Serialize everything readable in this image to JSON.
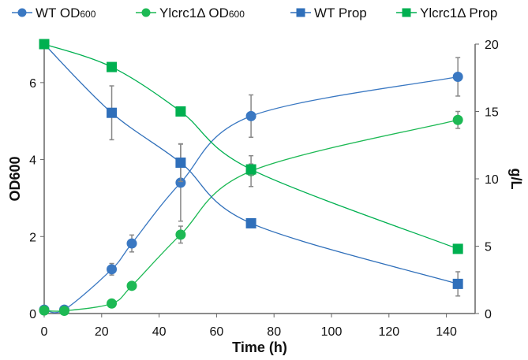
{
  "chart_data": {
    "type": "line",
    "title": "",
    "xlabel": "Time (h)",
    "ylabel": "OD600",
    "y2label": "g/L",
    "xlim": [
      0,
      150
    ],
    "ylim": [
      0,
      7
    ],
    "y2lim": [
      0,
      20
    ],
    "xticks": [
      0,
      20,
      40,
      60,
      80,
      100,
      120,
      140
    ],
    "yticks": [
      0,
      2,
      4,
      6
    ],
    "y2ticks": [
      0,
      5,
      10,
      15,
      20
    ],
    "grid": false,
    "legend_position": "top",
    "series": [
      {
        "name": "WT OD600",
        "legend_main": "WT OD",
        "legend_sub": "600",
        "axis": "left",
        "marker": "circle",
        "color": "#3a78c2",
        "x": [
          0,
          7,
          23.5,
          30.5,
          47.5,
          72,
          144
        ],
        "y": [
          0.1,
          0.1,
          1.15,
          1.82,
          3.4,
          5.13,
          6.15
        ],
        "err": [
          0,
          0,
          0.15,
          0.22,
          1.0,
          0.55,
          0.5
        ]
      },
      {
        "name": "Ylcrc1Δ OD600",
        "legend_main": "Ylcrc1Δ OD",
        "legend_sub": "600",
        "axis": "left",
        "marker": "circle",
        "color": "#1db954",
        "x": [
          0,
          7,
          23.5,
          30.5,
          47.5,
          72,
          144
        ],
        "y": [
          0.08,
          0.07,
          0.26,
          0.72,
          2.05,
          3.7,
          5.03
        ],
        "err": [
          0,
          0,
          0,
          0.1,
          0.22,
          0.4,
          0.22
        ]
      },
      {
        "name": "WT Prop",
        "legend_main": "WT Prop",
        "legend_sub": "",
        "axis": "right",
        "marker": "square",
        "color": "#2f6fba",
        "x": [
          0,
          23.5,
          47.5,
          72,
          144
        ],
        "y": [
          20,
          14.9,
          11.2,
          6.7,
          2.2
        ],
        "err": [
          0,
          2.0,
          1.4,
          0.3,
          0.9
        ]
      },
      {
        "name": "Ylcrc1Δ Prop",
        "legend_main": "Ylcrc1Δ Prop",
        "legend_sub": "",
        "axis": "right",
        "marker": "square",
        "color": "#00b050",
        "x": [
          0,
          23.5,
          47.5,
          72,
          144
        ],
        "y": [
          20,
          18.3,
          15.0,
          10.7,
          4.8
        ],
        "err": [
          0,
          0,
          0,
          0.4,
          0
        ]
      }
    ]
  }
}
